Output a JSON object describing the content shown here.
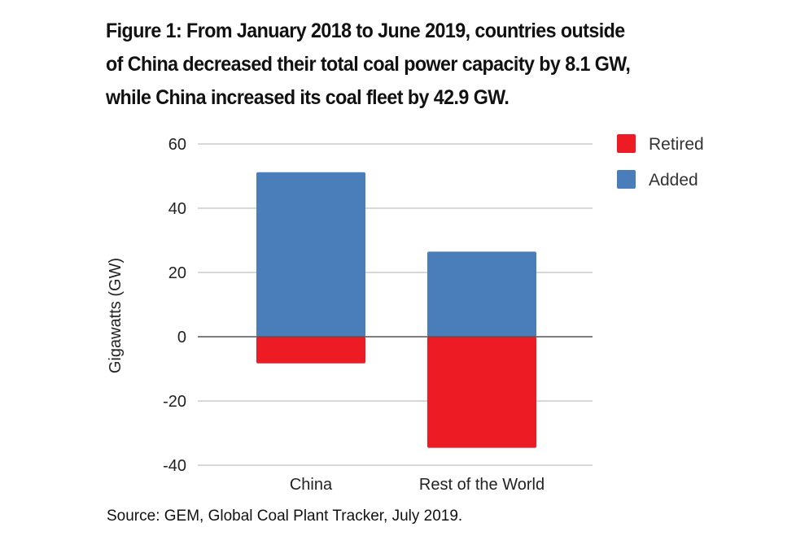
{
  "chart_data": {
    "type": "bar",
    "stacked": true,
    "title": "Figure 1: From January 2018 to June 2019, countries outside of China decreased their total coal power capacity by 8.1 GW, while China increased its coal fleet by 42.9 GW.",
    "title_lines": [
      "Figure 1: From January 2018 to June 2019, countries outside",
      "of China decreased their total coal power capacity by 8.1 GW,",
      "while China increased its coal fleet by 42.9 GW."
    ],
    "categories": [
      "China",
      "Rest of the World"
    ],
    "series": [
      {
        "name": "Retired",
        "color": "#ed1c24",
        "values": [
          -8.3,
          -34.6
        ]
      },
      {
        "name": "Added",
        "color": "#4a7ebb",
        "values": [
          51.2,
          26.5
        ]
      }
    ],
    "xlabel": "",
    "ylabel": "Gigawatts (GW)",
    "ylim": [
      -40,
      60
    ],
    "yticks": [
      60,
      40,
      20,
      0,
      -20,
      -40
    ],
    "grid": true,
    "legend": "right",
    "source": "Source: GEM, Global Coal Plant Tracker, July 2019."
  }
}
